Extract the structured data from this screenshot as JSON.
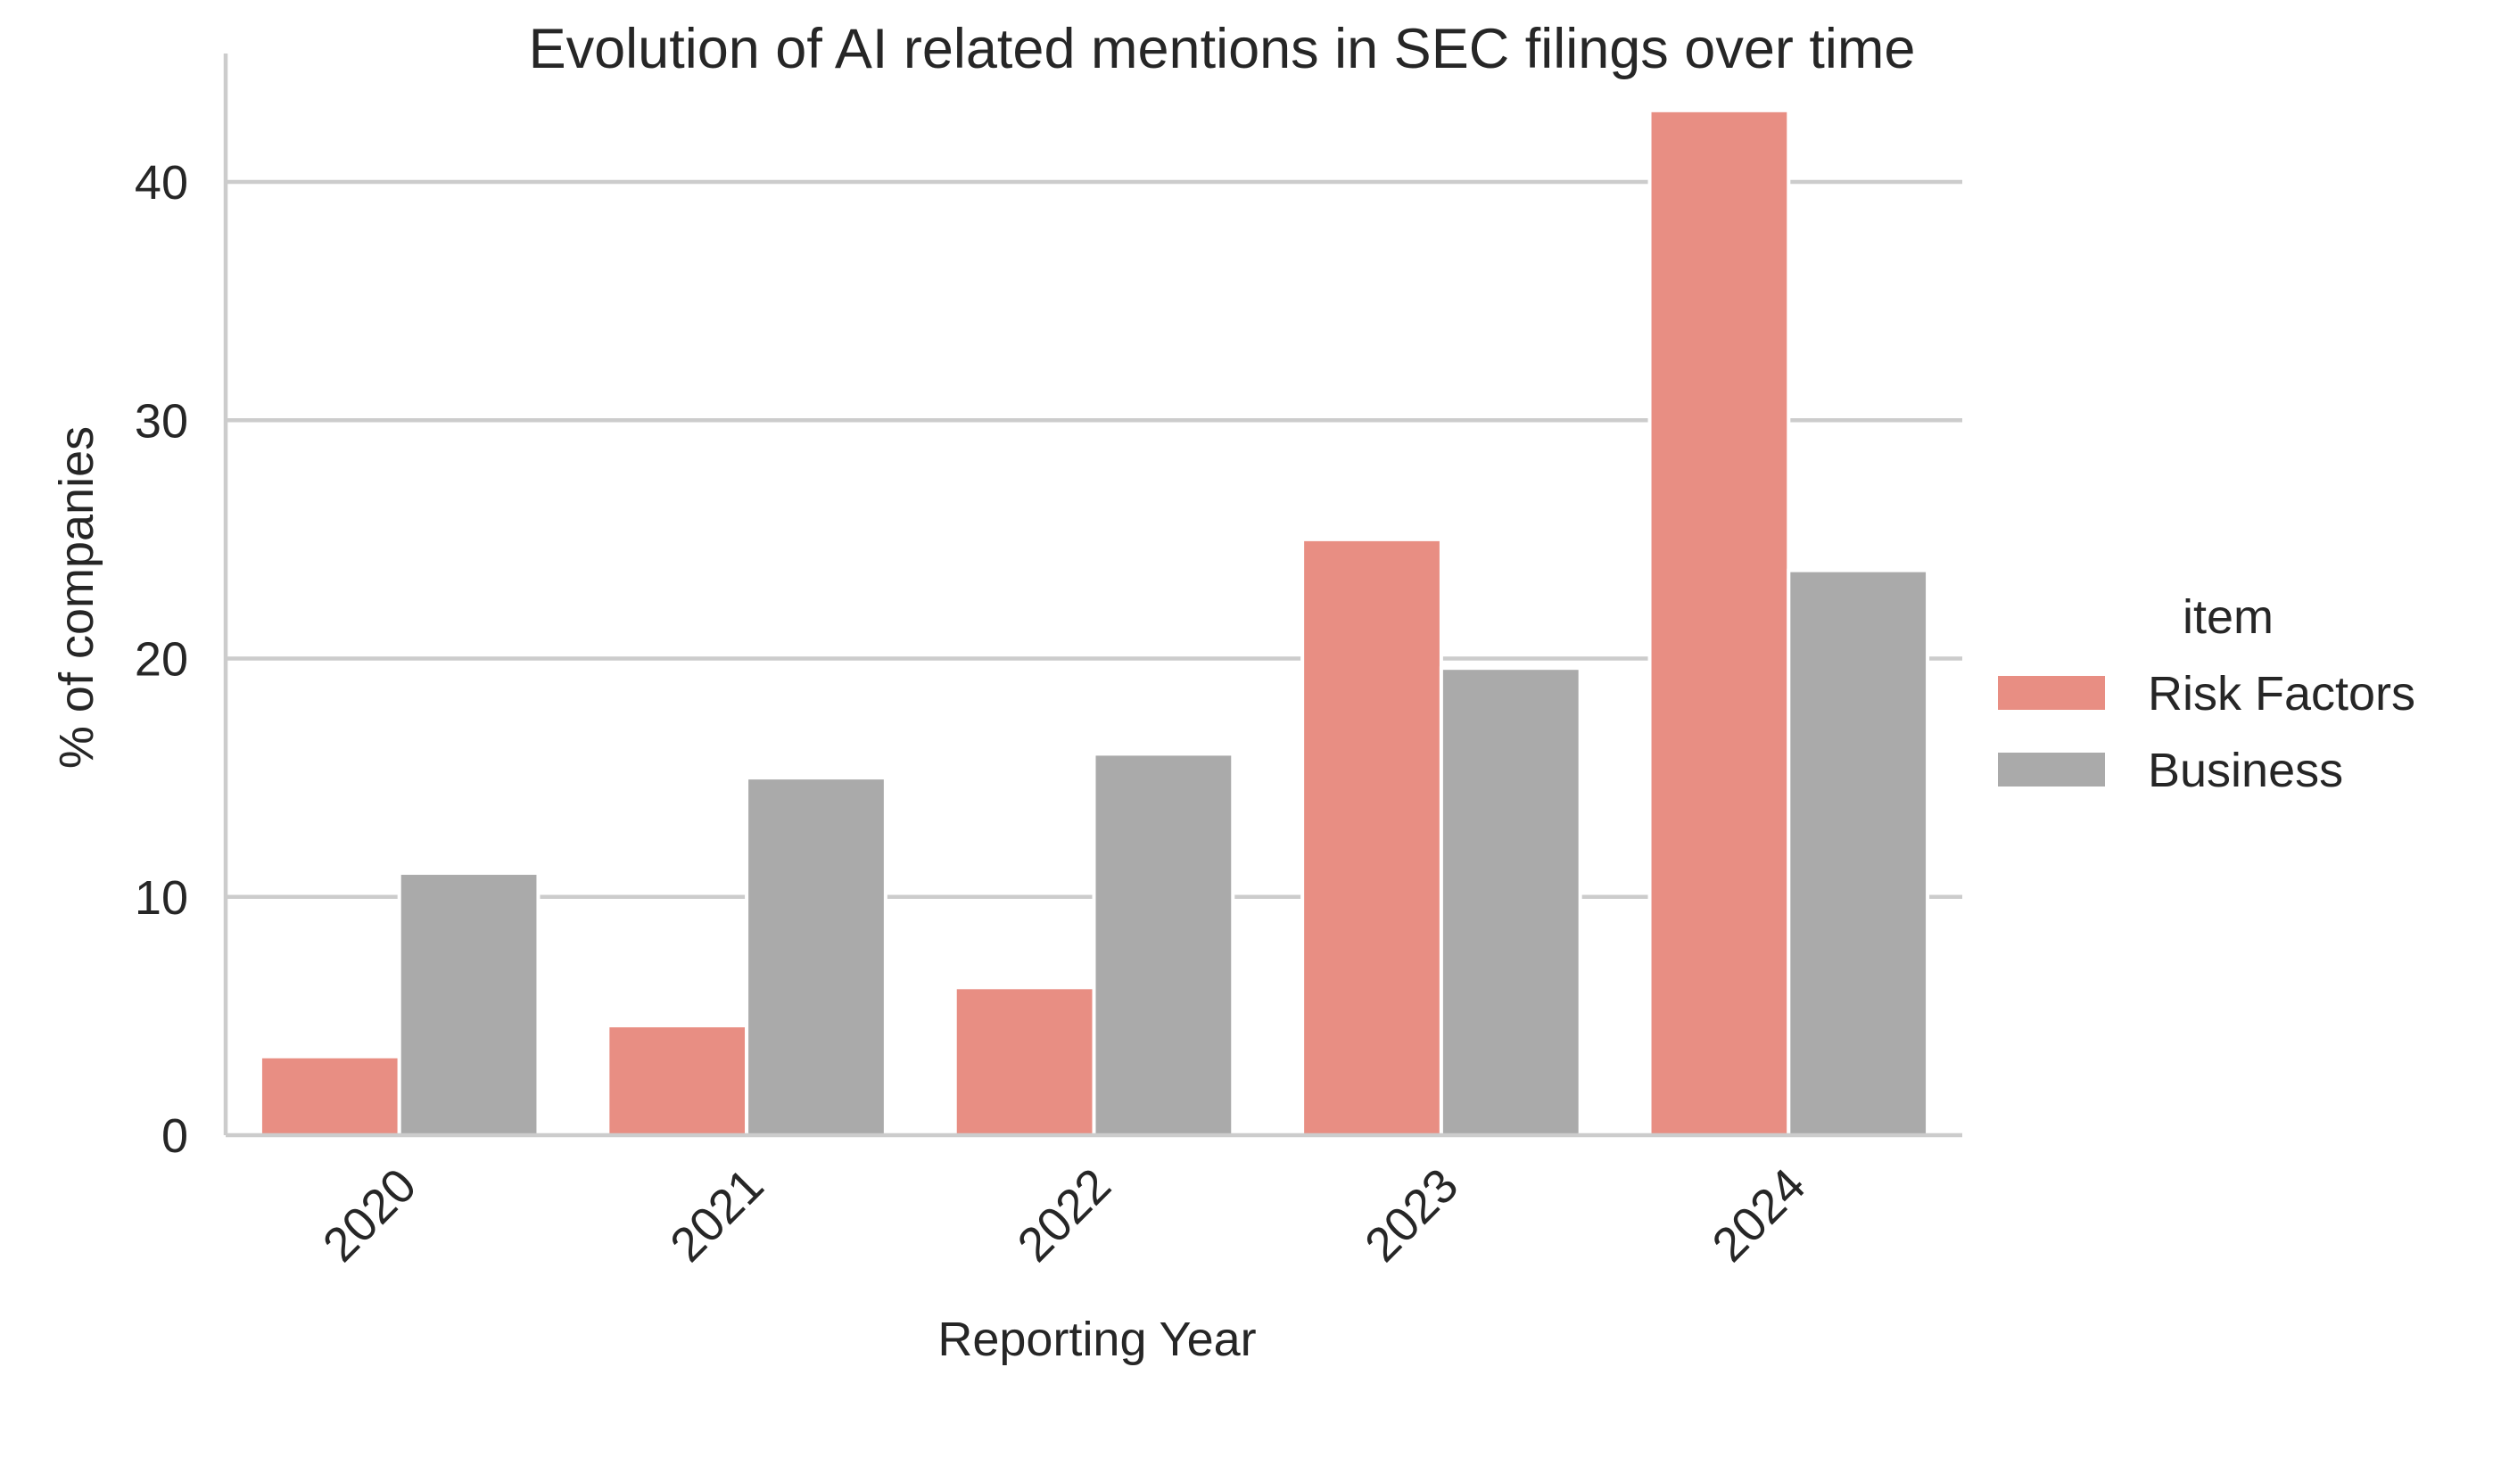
{
  "chart_data": {
    "type": "bar",
    "title": "Evolution of AI related mentions in SEC filings over time",
    "xlabel": "Reporting Year",
    "ylabel": "% of companies",
    "categories": [
      "2020",
      "2021",
      "2022",
      "2023",
      "2024"
    ],
    "series": [
      {
        "name": "Risk Factors",
        "color": "#e88e83",
        "values": [
          3.3,
          4.6,
          6.2,
          25.0,
          43.0
        ]
      },
      {
        "name": "Business",
        "color": "#aaaaaa",
        "values": [
          11.0,
          15.0,
          16.0,
          19.6,
          23.7
        ]
      }
    ],
    "ylim": [
      0,
      45
    ],
    "yticks": [
      0,
      10,
      20,
      30,
      40
    ],
    "grid": "horizontal",
    "legend": {
      "title": "item",
      "placement": "right"
    }
  }
}
